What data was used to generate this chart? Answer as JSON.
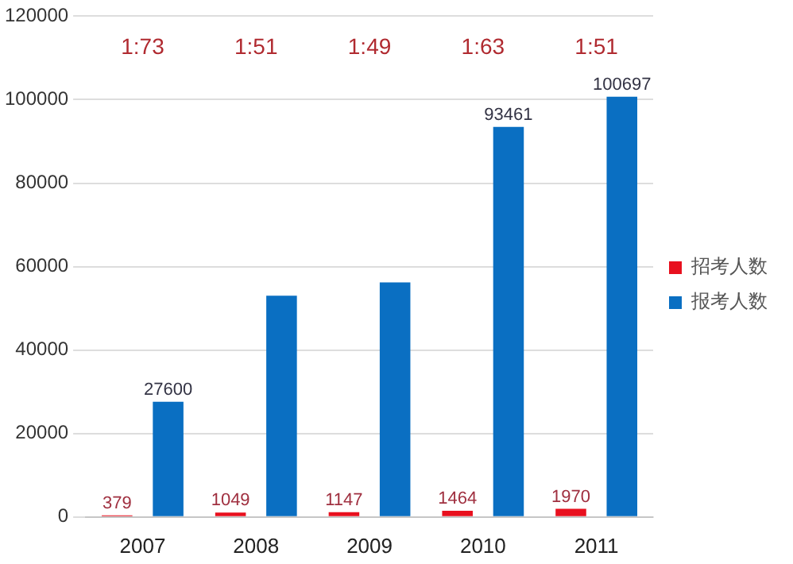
{
  "chart_data": {
    "type": "bar",
    "categories": [
      "2007",
      "2008",
      "2009",
      "2010",
      "2011"
    ],
    "series": [
      {
        "name": "招考人数",
        "color": "#e8101e",
        "values": [
          379,
          1049,
          1147,
          1464,
          1970
        ],
        "value_labels": [
          "379",
          "1049",
          "1147",
          "1464",
          "1970"
        ]
      },
      {
        "name": "报考人数",
        "color": "#0a6fc2",
        "values": [
          27600,
          53000,
          56200,
          93461,
          100697
        ],
        "value_labels": [
          "27600",
          null,
          null,
          "93461",
          "100697"
        ]
      }
    ],
    "ylim": [
      0,
      120000
    ],
    "yticks": [
      0,
      20000,
      40000,
      60000,
      80000,
      100000,
      120000
    ],
    "grid": "y",
    "legend": "right",
    "annotations": [
      "1:73",
      "1:51",
      "1:49",
      "1:63",
      "1:51"
    ]
  }
}
